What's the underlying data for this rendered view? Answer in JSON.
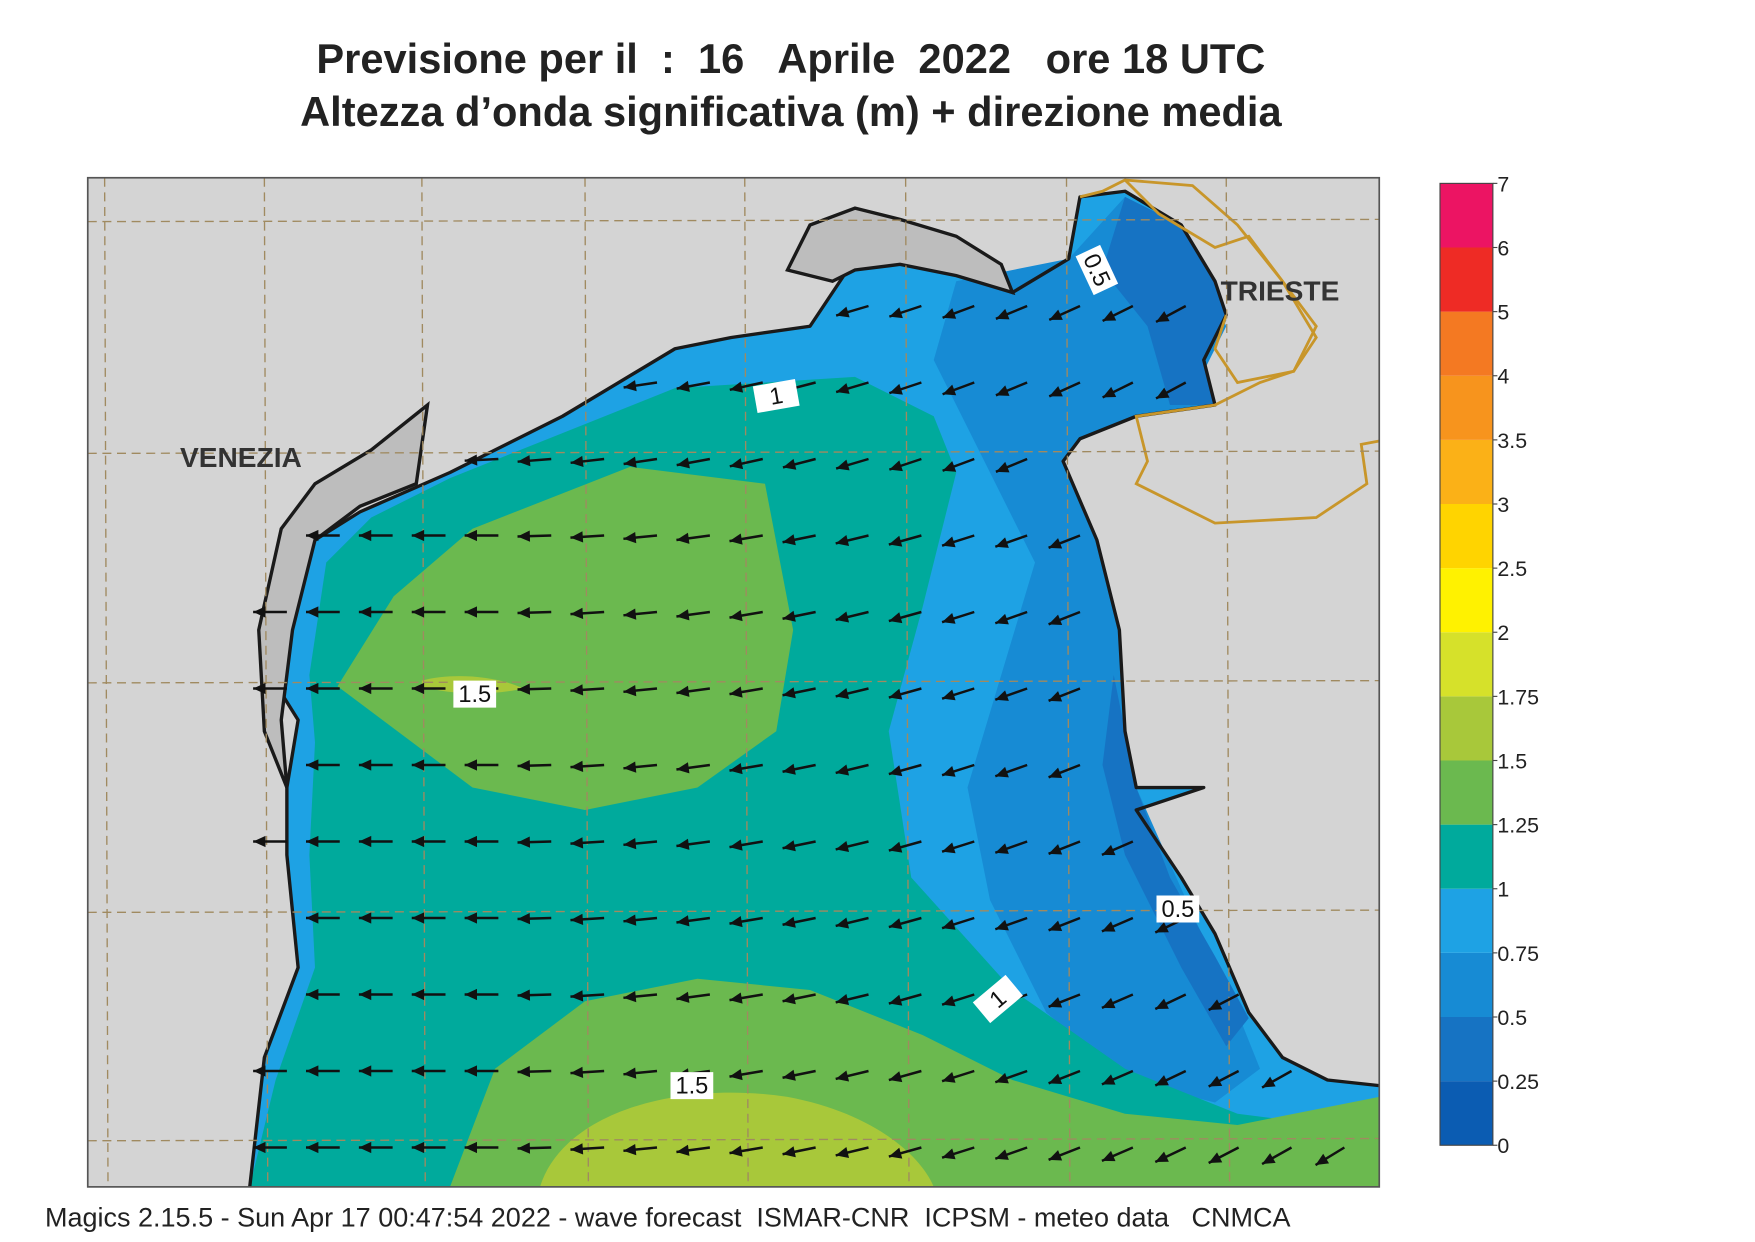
{
  "header": {
    "title_lines": [
      "Previsione per il  :  16   Aprile  2022   ore 18 UTC",
      "Altezza d’onda significativa (m) + direzione media"
    ]
  },
  "map": {
    "places": [
      "VENEZIA",
      "TRIESTE"
    ],
    "contour_labels": [
      "0.5",
      "1",
      "1.5",
      "1.5",
      "0.5",
      "1"
    ]
  },
  "colorbar": {
    "ticks": [
      0,
      0.25,
      0.5,
      0.75,
      1,
      1.25,
      1.5,
      1.75,
      2,
      2.5,
      3,
      3.5,
      4,
      5,
      6,
      7
    ],
    "colors": [
      "#0b5cb2",
      "#1673c3",
      "#178bd4",
      "#1ea2e4",
      "#00aa9c",
      "#6bb94f",
      "#a8c83a",
      "#d6e12a",
      "#fff200",
      "#ffd400",
      "#fbb117",
      "#f7941d",
      "#f47922",
      "#ee2b25",
      "#ec1463"
    ]
  },
  "footer": "Magics 2.15.5 - Sun Apr 17 00:47:54 2022 - wave forecast  ISMAR-CNR  ICPSM - meteo data   CNMCA"
}
